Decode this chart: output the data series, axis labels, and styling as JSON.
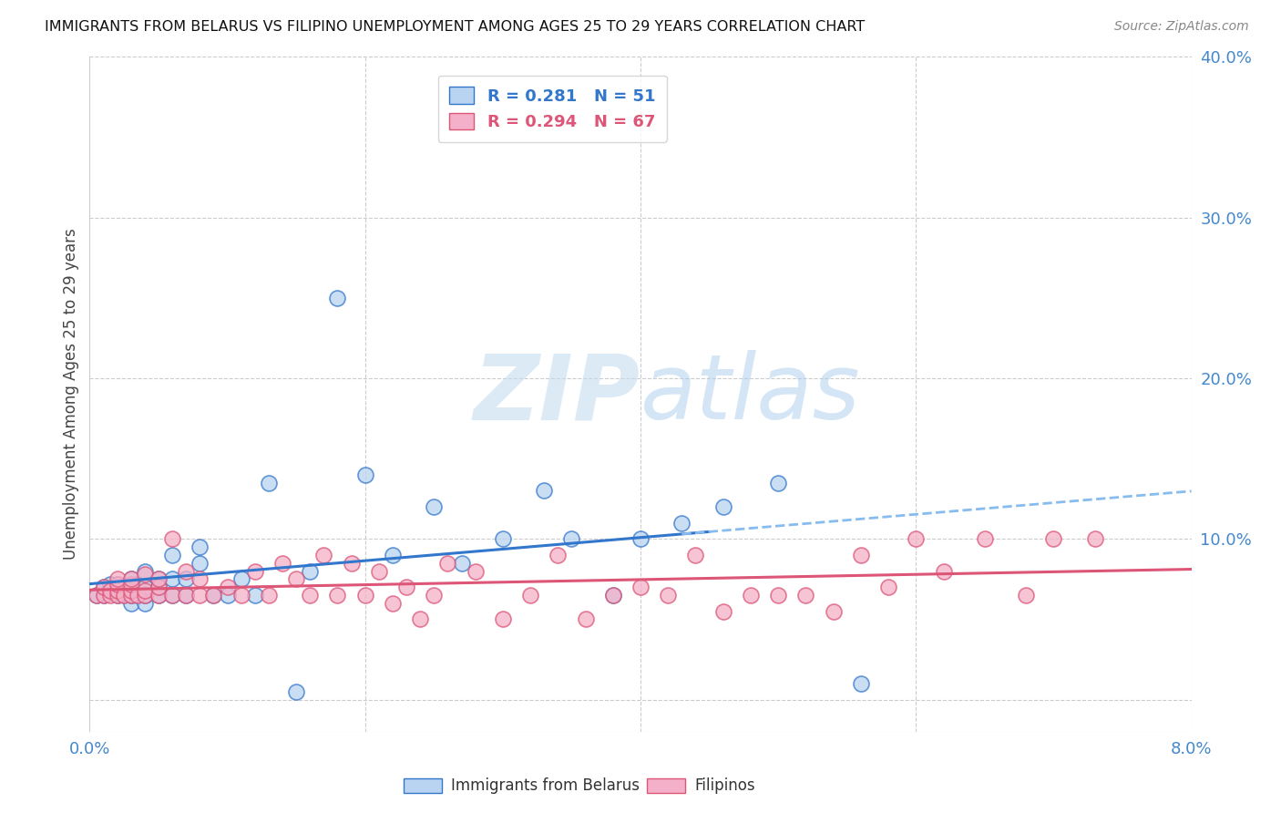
{
  "title": "IMMIGRANTS FROM BELARUS VS FILIPINO UNEMPLOYMENT AMONG AGES 25 TO 29 YEARS CORRELATION CHART",
  "source": "Source: ZipAtlas.com",
  "ylabel": "Unemployment Among Ages 25 to 29 years",
  "legend_label1": "Immigrants from Belarus",
  "legend_label2": "Filipinos",
  "R1": 0.281,
  "N1": 51,
  "R2": 0.294,
  "N2": 67,
  "xlim": [
    0.0,
    0.08
  ],
  "ylim": [
    -0.02,
    0.4
  ],
  "yticks_right": [
    0.0,
    0.1,
    0.2,
    0.3,
    0.4
  ],
  "ytick_labels_right": [
    "",
    "10.0%",
    "20.0%",
    "30.0%",
    "40.0%"
  ],
  "xticks": [
    0.0,
    0.02,
    0.04,
    0.06,
    0.08
  ],
  "xtick_labels": [
    "0.0%",
    "",
    "",
    "",
    "8.0%"
  ],
  "color_blue": "#b8d4f0",
  "color_pink": "#f4b0c8",
  "color_line_blue": "#3377cc",
  "color_line_pink": "#dd5577",
  "color_dashed_blue": "#88bbee",
  "color_axis_labels": "#4488cc",
  "watermark_color": "#c8ddf5",
  "background_color": "#ffffff",
  "grid_color": "#cccccc",
  "title_color": "#111111",
  "ylabel_color": "#444444",
  "source_color": "#888888",
  "belarus_x": [
    0.0005,
    0.001,
    0.001,
    0.0015,
    0.0015,
    0.002,
    0.002,
    0.002,
    0.0025,
    0.0025,
    0.003,
    0.003,
    0.003,
    0.003,
    0.0035,
    0.0035,
    0.004,
    0.004,
    0.004,
    0.004,
    0.005,
    0.005,
    0.005,
    0.006,
    0.006,
    0.006,
    0.007,
    0.007,
    0.008,
    0.008,
    0.009,
    0.01,
    0.011,
    0.012,
    0.013,
    0.015,
    0.016,
    0.018,
    0.02,
    0.022,
    0.025,
    0.027,
    0.03,
    0.033,
    0.035,
    0.038,
    0.04,
    0.043,
    0.046,
    0.05,
    0.056
  ],
  "belarus_y": [
    0.065,
    0.065,
    0.07,
    0.068,
    0.072,
    0.065,
    0.068,
    0.072,
    0.065,
    0.07,
    0.06,
    0.065,
    0.068,
    0.075,
    0.065,
    0.072,
    0.06,
    0.065,
    0.07,
    0.08,
    0.065,
    0.07,
    0.075,
    0.065,
    0.075,
    0.09,
    0.065,
    0.075,
    0.085,
    0.095,
    0.065,
    0.065,
    0.075,
    0.065,
    0.135,
    0.005,
    0.08,
    0.25,
    0.14,
    0.09,
    0.12,
    0.085,
    0.1,
    0.13,
    0.1,
    0.065,
    0.1,
    0.11,
    0.12,
    0.135,
    0.01
  ],
  "filipinos_x": [
    0.0005,
    0.001,
    0.001,
    0.0015,
    0.0015,
    0.002,
    0.002,
    0.002,
    0.002,
    0.0025,
    0.003,
    0.003,
    0.003,
    0.003,
    0.0035,
    0.004,
    0.004,
    0.004,
    0.005,
    0.005,
    0.005,
    0.006,
    0.006,
    0.007,
    0.007,
    0.008,
    0.008,
    0.009,
    0.01,
    0.011,
    0.012,
    0.013,
    0.014,
    0.015,
    0.016,
    0.017,
    0.018,
    0.019,
    0.02,
    0.021,
    0.022,
    0.023,
    0.024,
    0.025,
    0.026,
    0.028,
    0.03,
    0.032,
    0.034,
    0.036,
    0.038,
    0.04,
    0.042,
    0.044,
    0.046,
    0.048,
    0.05,
    0.052,
    0.054,
    0.056,
    0.058,
    0.06,
    0.062,
    0.065,
    0.068,
    0.07,
    0.073
  ],
  "filipinos_y": [
    0.065,
    0.065,
    0.07,
    0.065,
    0.068,
    0.065,
    0.068,
    0.072,
    0.075,
    0.065,
    0.065,
    0.068,
    0.072,
    0.075,
    0.065,
    0.065,
    0.068,
    0.078,
    0.065,
    0.07,
    0.075,
    0.065,
    0.1,
    0.065,
    0.08,
    0.065,
    0.075,
    0.065,
    0.07,
    0.065,
    0.08,
    0.065,
    0.085,
    0.075,
    0.065,
    0.09,
    0.065,
    0.085,
    0.065,
    0.08,
    0.06,
    0.07,
    0.05,
    0.065,
    0.085,
    0.08,
    0.05,
    0.065,
    0.09,
    0.05,
    0.065,
    0.07,
    0.065,
    0.09,
    0.055,
    0.065,
    0.065,
    0.065,
    0.055,
    0.09,
    0.07,
    0.1,
    0.08,
    0.1,
    0.065,
    0.1,
    0.1
  ]
}
